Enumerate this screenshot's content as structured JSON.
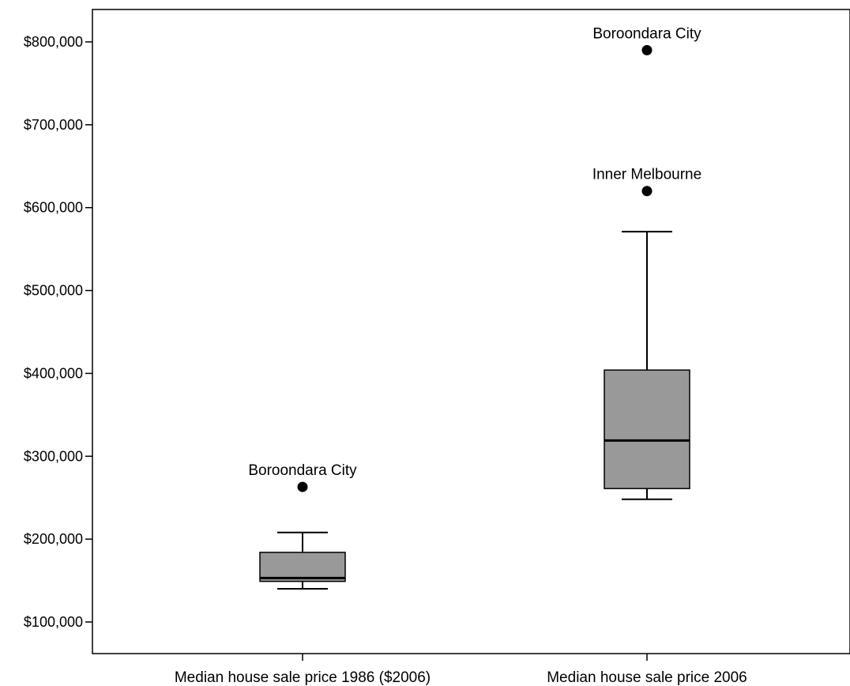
{
  "chart_data": {
    "type": "boxplot",
    "title": "",
    "xlabel": "",
    "ylabel": "",
    "ylim": [
      60000,
      830000
    ],
    "yticks": [
      100000,
      200000,
      300000,
      400000,
      500000,
      600000,
      700000,
      800000
    ],
    "ytick_labels": [
      "$100,000",
      "$200,000",
      "$300,000",
      "$400,000",
      "$500,000",
      "$600,000",
      "$700,000",
      "$800,000"
    ],
    "grid": false,
    "legend": "none",
    "box_color": "#999999",
    "categories": [
      "Median house sale price 1986 ($2006)",
      "Median house sale price 2006"
    ],
    "boxes": [
      {
        "category": "Median house sale price 1986 ($2006)",
        "whisker_low": 140000,
        "q1": 149000,
        "median": 153000,
        "q3": 184000,
        "whisker_high": 208000,
        "outliers": [
          {
            "value": 263000,
            "label": "Boroondara City"
          }
        ]
      },
      {
        "category": "Median house sale price 2006",
        "whisker_low": 248000,
        "q1": 261000,
        "median": 319000,
        "q3": 404000,
        "whisker_high": 571000,
        "outliers": [
          {
            "value": 620000,
            "label": "Inner Melbourne"
          },
          {
            "value": 790000,
            "label": "Boroondara City"
          }
        ]
      }
    ]
  }
}
